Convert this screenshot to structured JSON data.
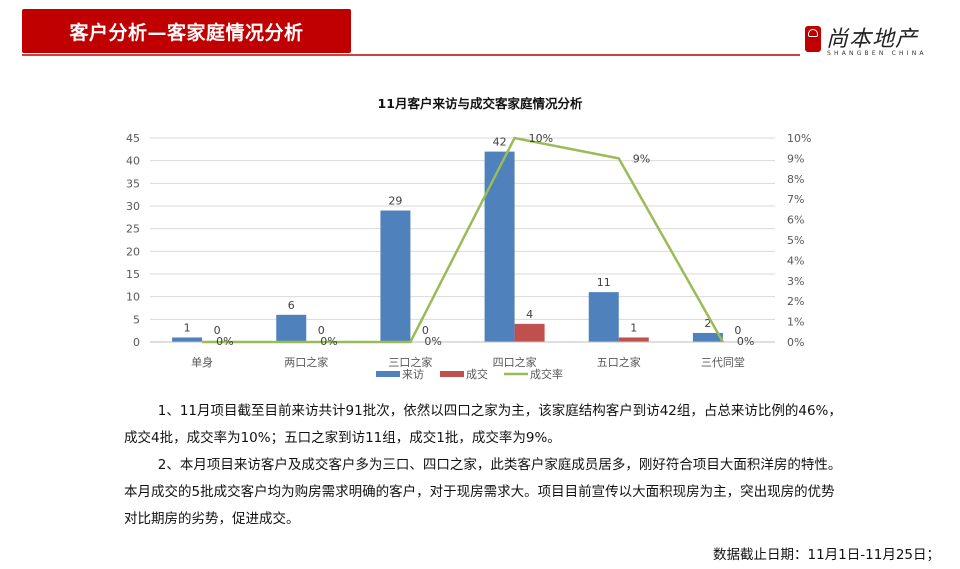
{
  "header": {
    "title": "客户分析—客家庭情况分析",
    "logo_cn": "尚本地产",
    "logo_en": "SHANGBEN CHINA",
    "accent_color": "#c00000"
  },
  "chart_data": {
    "type": "bar",
    "title": "11月客户来访与成交客家庭情况分析",
    "categories": [
      "单身",
      "两口之家",
      "三口之家",
      "四口之家",
      "五口之家",
      "三代同堂"
    ],
    "series": [
      {
        "name": "来访",
        "type": "bar",
        "axis": "left",
        "color": "#4f81bd",
        "values": [
          1,
          6,
          29,
          42,
          11,
          2
        ]
      },
      {
        "name": "成交",
        "type": "bar",
        "axis": "left",
        "color": "#c0504d",
        "values": [
          0,
          0,
          0,
          4,
          1,
          0
        ]
      },
      {
        "name": "成交率",
        "type": "line",
        "axis": "right",
        "color": "#9bbb59",
        "values": [
          0,
          0,
          0,
          10,
          9,
          0
        ],
        "labels": [
          "0%",
          "0%",
          "0%",
          "10%",
          "9%",
          "0%"
        ]
      }
    ],
    "ylim": [
      0,
      45
    ],
    "yticks": [
      "0",
      "5",
      "10",
      "15",
      "20",
      "25",
      "30",
      "35",
      "40",
      "45"
    ],
    "y2lim": [
      0,
      10
    ],
    "y2ticks": [
      "0%",
      "1%",
      "2%",
      "3%",
      "4%",
      "5%",
      "6%",
      "7%",
      "8%",
      "9%",
      "10%"
    ],
    "xlabel": "",
    "ylabel": "",
    "grid": true,
    "legend_position": "bottom",
    "legend": [
      "来访",
      "成交",
      "成交率"
    ]
  },
  "body": {
    "paragraph1": "1、11月项目截至目前来访共计91批次，依然以四口之家为主，该家庭结构客户到访42组，占总来访比例的46%，成交4批，成交率为10%；五口之家到访11组，成交1批，成交率为9%。",
    "paragraph2": "2、本月项目来访客户及成交客户多为三口、四口之家，此类客户家庭成员居多，刚好符合项目大面积洋房的特性。本月成交的5批成交客户均为购房需求明确的客户，对于现房需求大。项目目前宣传以大面积现房为主，突出现房的优势对比期房的劣势，促进成交。",
    "footnote": "数据截止日期：11月1日-11月25日；"
  }
}
